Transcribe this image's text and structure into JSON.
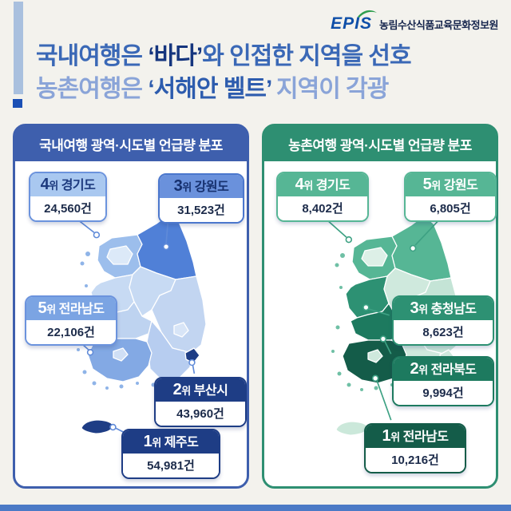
{
  "logo": {
    "epis": "EPIS",
    "org": "농림수산식품교육문화정보원"
  },
  "title": {
    "line1_pre": "국내여행은 ",
    "line1_emph": "‘바다’",
    "line1_post": "와 인접한 지역을 선호",
    "line2_pre": "농촌여행은 ",
    "line2_emph": "‘서해안 벨트’",
    "line2_post": " 지역이 각광"
  },
  "theme": {
    "background": "#f3f2ed",
    "footer_bar": "#4b7ac6",
    "accent_bar": "#a9c0de",
    "accent_square": "#1b50b5",
    "title_line1": "#3a68b6",
    "title_emph1": "#15357e",
    "title_line2": "#8aa4d8",
    "title_emph2": "#2d5cae"
  },
  "panels": [
    {
      "header": "국내여행 광역·시도별 언급량 분포",
      "panel_color": "#3e5fad",
      "connector_color": "#5f8ad8",
      "cards": [
        {
          "rank": "4",
          "suffix": "위",
          "region": "경기도",
          "value": "24,560건",
          "colors": {
            "bg": "#a9c8f0",
            "fg": "#1d3a7e",
            "border": "#6b93dd"
          }
        },
        {
          "rank": "3",
          "suffix": "위",
          "region": "강원도",
          "value": "31,523건",
          "colors": {
            "bg": "#6a91dc",
            "fg": "#16306e",
            "border": "#4b77cd"
          }
        },
        {
          "rank": "5",
          "suffix": "위",
          "region": "전라남도",
          "value": "22,106건",
          "colors": {
            "bg": "#7ba4e3",
            "fg": "#ffffff",
            "border": "#6b93dd"
          }
        },
        {
          "rank": "2",
          "suffix": "위",
          "region": "부산시",
          "value": "43,960건",
          "colors": {
            "bg": "#1e3d85",
            "fg": "#ffffff",
            "border": "#1e3d85"
          }
        },
        {
          "rank": "1",
          "suffix": "위",
          "region": "제주도",
          "value": "54,981건",
          "colors": {
            "bg": "#1e3d85",
            "fg": "#ffffff",
            "border": "#1e3d85"
          }
        }
      ],
      "map_colors": {
        "gyeonggi": "#9cbeec",
        "seoul": "#dce9f8",
        "gangwon": "#5080d7",
        "chungbuk": "#c7daf3",
        "chungnam": "#c7daf3",
        "gyeongbuk": "#c2d5f1",
        "daegu": "#d8e5f7",
        "jeonbuk": "#bed3f0",
        "jeonnam": "#83a9e4",
        "gwangju": "#cfdff5",
        "gyeongnam": "#b7cdf0",
        "busan": "#1e3d85",
        "jeju": "#1e3d85",
        "islands": "#8fb4e8"
      }
    },
    {
      "header": "농촌여행 광역·시도별 언급량 분포",
      "panel_color": "#2e8f72",
      "connector_color": "#3da183",
      "cards": [
        {
          "rank": "4",
          "suffix": "위",
          "region": "경기도",
          "value": "8,402건",
          "colors": {
            "bg": "#56b695",
            "fg": "#ffffff",
            "border": "#56b695"
          }
        },
        {
          "rank": "5",
          "suffix": "위",
          "region": "강원도",
          "value": "6,805건",
          "colors": {
            "bg": "#56b695",
            "fg": "#ffffff",
            "border": "#56b695"
          }
        },
        {
          "rank": "3",
          "suffix": "위",
          "region": "충청남도",
          "value": "8,623건",
          "colors": {
            "bg": "#2d9173",
            "fg": "#ffffff",
            "border": "#2d9173"
          }
        },
        {
          "rank": "2",
          "suffix": "위",
          "region": "전라북도",
          "value": "9,994건",
          "colors": {
            "bg": "#1d7a5f",
            "fg": "#ffffff",
            "border": "#1d7a5f"
          }
        },
        {
          "rank": "1",
          "suffix": "위",
          "region": "전라남도",
          "value": "10,216건",
          "colors": {
            "bg": "#145c49",
            "fg": "#ffffff",
            "border": "#145c49"
          }
        }
      ],
      "map_colors": {
        "gyeonggi": "#56b695",
        "seoul": "#ddf0e7",
        "gangwon": "#56b695",
        "chungbuk": "#cfe9dd",
        "chungnam": "#2d9173",
        "gyeongbuk": "#c4e4d6",
        "daegu": "#ddf0e7",
        "jeonbuk": "#1d7a5f",
        "jeonnam": "#145c49",
        "gwangju": "#cfe9dd",
        "gyeongnam": "#cfe9dd",
        "busan": "#cfe9dd",
        "jeju": "#cbe8da",
        "islands": "#6fc0a5"
      }
    }
  ],
  "chart_data": [
    {
      "type": "heatmap",
      "title": "국내여행 광역·시도별 언급량 분포",
      "categories": [
        "제주도",
        "부산시",
        "강원도",
        "경기도",
        "전라남도"
      ],
      "ranks": [
        1,
        2,
        3,
        4,
        5
      ],
      "values": [
        54981,
        43960,
        31523,
        24560,
        22106
      ],
      "unit": "건"
    },
    {
      "type": "heatmap",
      "title": "농촌여행 광역·시도별 언급량 분포",
      "categories": [
        "전라남도",
        "전라북도",
        "충청남도",
        "경기도",
        "강원도"
      ],
      "ranks": [
        1,
        2,
        3,
        4,
        5
      ],
      "values": [
        10216,
        9994,
        8623,
        8402,
        6805
      ],
      "unit": "건"
    }
  ]
}
